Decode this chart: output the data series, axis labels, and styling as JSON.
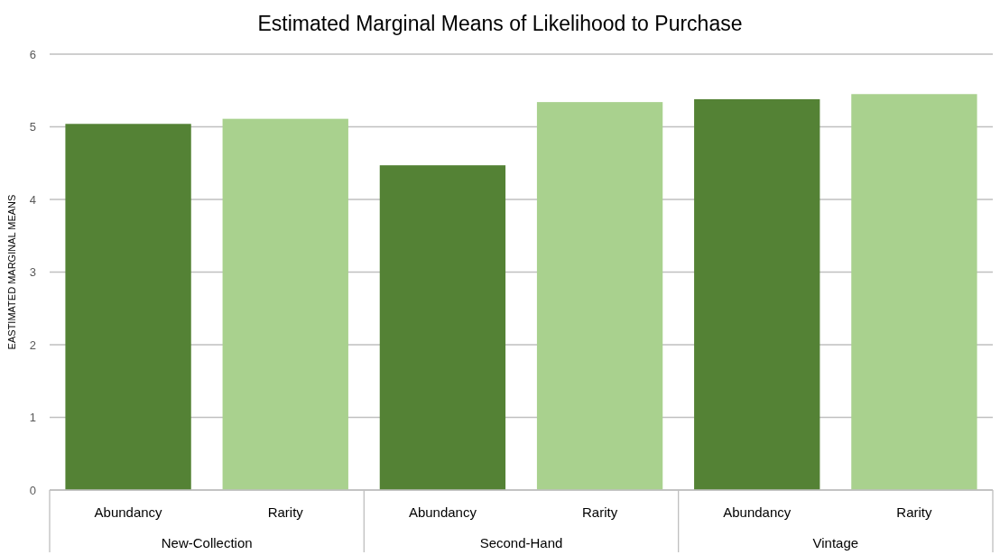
{
  "chart_data": {
    "type": "bar",
    "title": "Estimated Marginal Means of Likelihood to Purchase",
    "ylabel": "EASTIMATED MARGINAL MEANS",
    "categories": [
      "New-Collection",
      "Second-Hand",
      "Vintage"
    ],
    "series": [
      {
        "name": "Abundancy",
        "color": "#548235",
        "values": [
          5.04,
          4.47,
          5.38
        ]
      },
      {
        "name": "Rarity",
        "color": "#a9d18e",
        "values": [
          5.11,
          5.34,
          5.45
        ]
      }
    ],
    "ylim": [
      0,
      6
    ],
    "yticks": [
      0,
      1,
      2,
      3,
      4,
      5,
      6
    ],
    "grid": "y"
  }
}
